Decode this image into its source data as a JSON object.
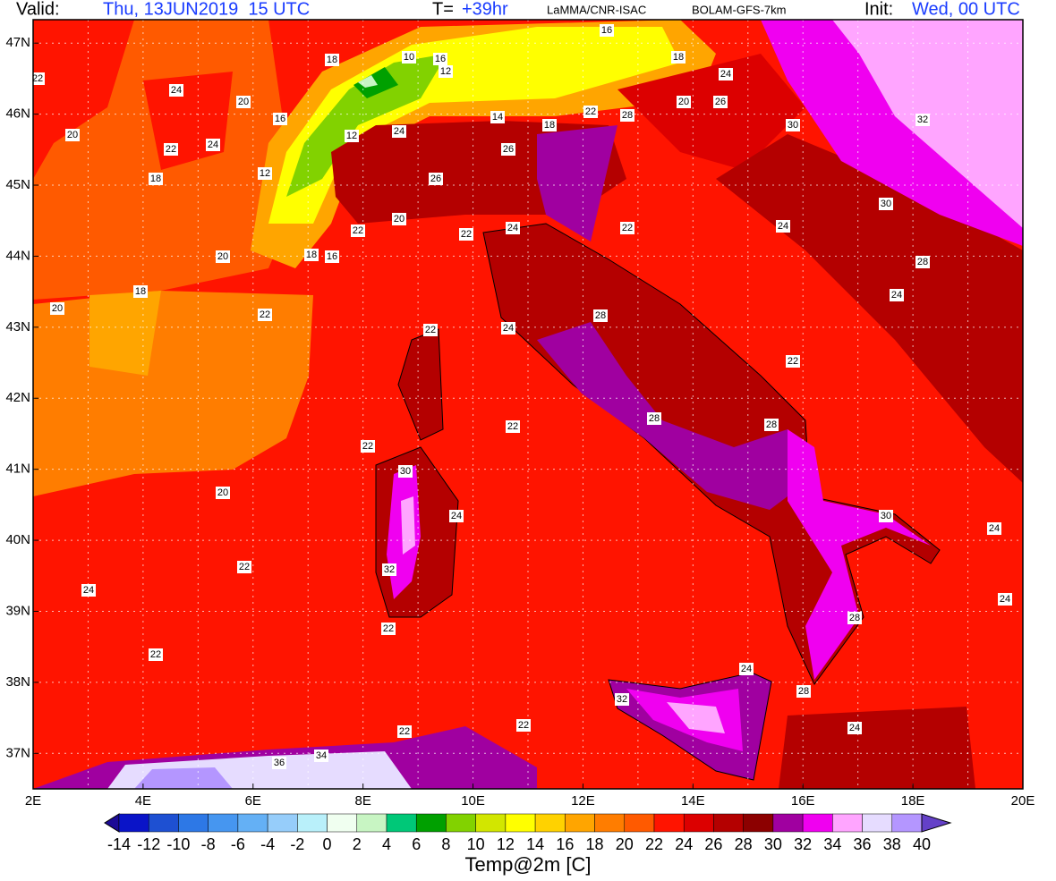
{
  "header": {
    "valid_label": "Valid:",
    "valid_time": "Thu, 13JUN2019  15 UTC",
    "forecast_label": "T=",
    "forecast_hours": "+39hr",
    "source": "LaMMA/CNR-ISAC",
    "model": "BOLAM-GFS-7km",
    "init_label": "Init:",
    "init_time": "Wed, 00 UTC"
  },
  "map": {
    "lonlim": [
      2,
      20
    ],
    "latlim": [
      36.5,
      47.33
    ],
    "lon_ticks": [
      {
        "value": 2,
        "label": "2E"
      },
      {
        "value": 4,
        "label": "4E"
      },
      {
        "value": 6,
        "label": "6E"
      },
      {
        "value": 8,
        "label": "8E"
      },
      {
        "value": 10,
        "label": "10E"
      },
      {
        "value": 12,
        "label": "12E"
      },
      {
        "value": 14,
        "label": "14E"
      },
      {
        "value": 16,
        "label": "16E"
      },
      {
        "value": 18,
        "label": "18E"
      },
      {
        "value": 20,
        "label": "20E"
      }
    ],
    "lat_ticks": [
      {
        "value": 37,
        "label": "37N"
      },
      {
        "value": 38,
        "label": "38N"
      },
      {
        "value": 39,
        "label": "39N"
      },
      {
        "value": 40,
        "label": "40N"
      },
      {
        "value": 41,
        "label": "41N"
      },
      {
        "value": 42,
        "label": "42N"
      },
      {
        "value": 43,
        "label": "43N"
      },
      {
        "value": 44,
        "label": "44N"
      },
      {
        "value": 45,
        "label": "45N"
      },
      {
        "value": 46,
        "label": "46N"
      },
      {
        "value": 47,
        "label": "47N"
      }
    ],
    "grid": true,
    "contour_labels": [
      "22",
      "24",
      "18",
      "10",
      "16",
      "12",
      "16",
      "18",
      "24",
      "20",
      "16",
      "12",
      "24",
      "14",
      "18",
      "22",
      "28",
      "20",
      "26",
      "30",
      "32",
      "20",
      "22",
      "24",
      "26",
      "18",
      "12",
      "26",
      "30",
      "20",
      "22",
      "22",
      "24",
      "22",
      "24",
      "20",
      "18",
      "16",
      "28",
      "18",
      "24",
      "20",
      "22",
      "22",
      "24",
      "28",
      "22",
      "22",
      "28",
      "28",
      "22",
      "30",
      "20",
      "24",
      "30",
      "24",
      "22",
      "32",
      "24",
      "24",
      "22",
      "28",
      "22",
      "24",
      "28",
      "32",
      "22",
      "24",
      "22",
      "36",
      "34"
    ]
  },
  "colorbar": {
    "title": "Temp@2m [C]",
    "levels": [
      -14,
      -12,
      -10,
      -8,
      -6,
      -4,
      -2,
      0,
      2,
      4,
      6,
      8,
      10,
      12,
      14,
      16,
      18,
      20,
      22,
      24,
      26,
      28,
      30,
      32,
      34,
      36,
      38,
      40
    ],
    "colors": [
      "#1c0a96",
      "#0a14c8",
      "#1e50d2",
      "#2d78e6",
      "#4696f0",
      "#64b0f5",
      "#96cdfa",
      "#b9f0fa",
      "#f0fff0",
      "#c8f5c3",
      "#00c878",
      "#00a000",
      "#82d200",
      "#d2e600",
      "#ffff00",
      "#ffd200",
      "#ffa500",
      "#ff7d00",
      "#ff5a00",
      "#ff1400",
      "#dc0000",
      "#b40000",
      "#8c0000",
      "#a000a0",
      "#f000f0",
      "#ffa5ff",
      "#e6dcff",
      "#b496ff",
      "#8c64f0",
      "#6440c8"
    ]
  }
}
